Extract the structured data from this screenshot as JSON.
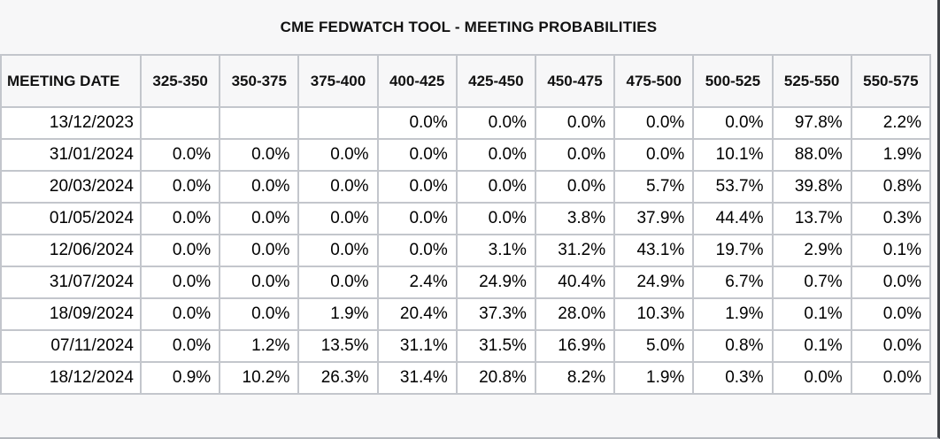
{
  "title": "CME FEDWATCH TOOL - MEETING PROBABILITIES",
  "colors": {
    "page-bg": "#f7f7f8",
    "grid-line": "#c3c6cc",
    "highlight-cyan": "#cdf1f6",
    "highlight-yellow": "#f5f5d2",
    "edge-dark": "#3f4247",
    "edge-shadow": "#b5b8be"
  },
  "table": {
    "date_header": "MEETING DATE",
    "columns": [
      "325-350",
      "350-375",
      "375-400",
      "400-425",
      "425-450",
      "450-475",
      "475-500",
      "500-525",
      "525-550",
      "550-575"
    ],
    "rows": [
      {
        "date": "13/12/2023",
        "cells": [
          "",
          "",
          "",
          "0.0%",
          "0.0%",
          "0.0%",
          "0.0%",
          "0.0%",
          "97.8%",
          "2.2%"
        ],
        "hl": [
          "",
          "",
          "",
          "",
          "",
          "",
          "",
          "",
          "c",
          ""
        ]
      },
      {
        "date": "31/01/2024",
        "cells": [
          "0.0%",
          "0.0%",
          "0.0%",
          "0.0%",
          "0.0%",
          "0.0%",
          "0.0%",
          "10.1%",
          "88.0%",
          "1.9%"
        ],
        "hl": [
          "",
          "",
          "",
          "",
          "",
          "",
          "",
          "",
          "c",
          ""
        ]
      },
      {
        "date": "20/03/2024",
        "cells": [
          "0.0%",
          "0.0%",
          "0.0%",
          "0.0%",
          "0.0%",
          "0.0%",
          "5.7%",
          "53.7%",
          "39.8%",
          "0.8%"
        ],
        "hl": [
          "",
          "",
          "",
          "",
          "",
          "",
          "",
          "c",
          "y",
          ""
        ]
      },
      {
        "date": "01/05/2024",
        "cells": [
          "0.0%",
          "0.0%",
          "0.0%",
          "0.0%",
          "0.0%",
          "3.8%",
          "37.9%",
          "44.4%",
          "13.7%",
          "0.3%"
        ],
        "hl": [
          "",
          "",
          "",
          "",
          "",
          "",
          "",
          "c",
          "y",
          ""
        ]
      },
      {
        "date": "12/06/2024",
        "cells": [
          "0.0%",
          "0.0%",
          "0.0%",
          "0.0%",
          "3.1%",
          "31.2%",
          "43.1%",
          "19.7%",
          "2.9%",
          "0.1%"
        ],
        "hl": [
          "",
          "",
          "",
          "",
          "",
          "",
          "c",
          "y",
          "y",
          ""
        ]
      },
      {
        "date": "31/07/2024",
        "cells": [
          "0.0%",
          "0.0%",
          "0.0%",
          "2.4%",
          "24.9%",
          "40.4%",
          "24.9%",
          "6.7%",
          "0.7%",
          "0.0%"
        ],
        "hl": [
          "",
          "",
          "",
          "",
          "",
          "c",
          "y",
          "y",
          "y",
          ""
        ]
      },
      {
        "date": "18/09/2024",
        "cells": [
          "0.0%",
          "0.0%",
          "1.9%",
          "20.4%",
          "37.3%",
          "28.0%",
          "10.3%",
          "1.9%",
          "0.1%",
          "0.0%"
        ],
        "hl": [
          "",
          "",
          "",
          "",
          "c",
          "y",
          "y",
          "y",
          "y",
          ""
        ]
      },
      {
        "date": "07/11/2024",
        "cells": [
          "0.0%",
          "1.2%",
          "13.5%",
          "31.1%",
          "31.5%",
          "16.9%",
          "5.0%",
          "0.8%",
          "0.1%",
          "0.0%"
        ],
        "hl": [
          "",
          "",
          "",
          "",
          "c",
          "y",
          "y",
          "y",
          "y",
          ""
        ]
      },
      {
        "date": "18/12/2024",
        "cells": [
          "0.9%",
          "10.2%",
          "26.3%",
          "31.4%",
          "20.8%",
          "8.2%",
          "1.9%",
          "0.3%",
          "0.0%",
          "0.0%"
        ],
        "hl": [
          "",
          "",
          "",
          "c",
          "y",
          "y",
          "y",
          "y",
          "y",
          ""
        ]
      }
    ]
  },
  "chart_data": {
    "type": "table",
    "title": "CME FEDWATCH TOOL - MEETING PROBABILITIES",
    "row_label": "MEETING DATE",
    "columns": [
      "325-350",
      "350-375",
      "375-400",
      "400-425",
      "425-450",
      "450-475",
      "475-500",
      "500-525",
      "525-550",
      "550-575"
    ],
    "unit": "percent",
    "rows": [
      {
        "date": "13/12/2023",
        "probabilities_pct": [
          null,
          null,
          null,
          0.0,
          0.0,
          0.0,
          0.0,
          0.0,
          97.8,
          2.2
        ]
      },
      {
        "date": "31/01/2024",
        "probabilities_pct": [
          0.0,
          0.0,
          0.0,
          0.0,
          0.0,
          0.0,
          0.0,
          10.1,
          88.0,
          1.9
        ]
      },
      {
        "date": "20/03/2024",
        "probabilities_pct": [
          0.0,
          0.0,
          0.0,
          0.0,
          0.0,
          0.0,
          5.7,
          53.7,
          39.8,
          0.8
        ]
      },
      {
        "date": "01/05/2024",
        "probabilities_pct": [
          0.0,
          0.0,
          0.0,
          0.0,
          0.0,
          3.8,
          37.9,
          44.4,
          13.7,
          0.3
        ]
      },
      {
        "date": "12/06/2024",
        "probabilities_pct": [
          0.0,
          0.0,
          0.0,
          0.0,
          3.1,
          31.2,
          43.1,
          19.7,
          2.9,
          0.1
        ]
      },
      {
        "date": "31/07/2024",
        "probabilities_pct": [
          0.0,
          0.0,
          0.0,
          2.4,
          24.9,
          40.4,
          24.9,
          6.7,
          0.7,
          0.0
        ]
      },
      {
        "date": "18/09/2024",
        "probabilities_pct": [
          0.0,
          0.0,
          1.9,
          20.4,
          37.3,
          28.0,
          10.3,
          1.9,
          0.1,
          0.0
        ]
      },
      {
        "date": "07/11/2024",
        "probabilities_pct": [
          0.0,
          1.2,
          13.5,
          31.1,
          31.5,
          16.9,
          5.0,
          0.8,
          0.1,
          0.0
        ]
      },
      {
        "date": "18/12/2024",
        "probabilities_pct": [
          0.9,
          10.2,
          26.3,
          31.4,
          20.8,
          8.2,
          1.9,
          0.3,
          0.0,
          0.0
        ]
      }
    ],
    "cell_highlights": {
      "cyan_cells": [
        {
          "date": "13/12/2023",
          "column": "525-550"
        },
        {
          "date": "31/01/2024",
          "column": "525-550"
        },
        {
          "date": "20/03/2024",
          "column": "500-525"
        },
        {
          "date": "01/05/2024",
          "column": "500-525"
        },
        {
          "date": "12/06/2024",
          "column": "475-500"
        },
        {
          "date": "31/07/2024",
          "column": "450-475"
        },
        {
          "date": "18/09/2024",
          "column": "425-450"
        },
        {
          "date": "07/11/2024",
          "column": "425-450"
        },
        {
          "date": "18/12/2024",
          "column": "400-425"
        }
      ],
      "cyan_color": "#cdf1f6",
      "yellow_color": "#f5f5d2"
    }
  }
}
